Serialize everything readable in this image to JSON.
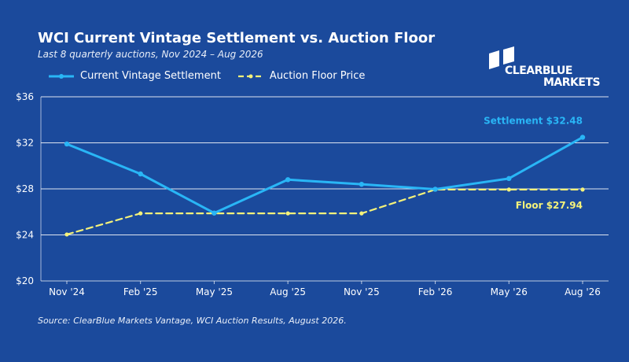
{
  "header": {
    "title": "WCI Current Vintage Settlement vs. Auction Floor",
    "subtitle": "Last 8 quarterly auctions, Nov 2024 – Aug 2026"
  },
  "logo": {
    "line1": "CLEARBLUE",
    "line2": "MARKETS"
  },
  "source": "Source: ClearBlue Markets Vantage, WCI Auction Results, August 2026.",
  "colors": {
    "background": "#1b4a9c",
    "settlement": "#29b6f6",
    "floor": "#f5f27a",
    "grid": "#ffffff"
  },
  "chart_data": {
    "type": "line",
    "categories": [
      "Nov '24",
      "Feb '25",
      "May '25",
      "Aug '25",
      "Nov '25",
      "Feb '26",
      "May '26",
      "Aug '26"
    ],
    "series": [
      {
        "name": "Current Vintage Settlement",
        "values": [
          31.9,
          29.3,
          25.9,
          28.8,
          28.4,
          27.97,
          28.9,
          32.48
        ],
        "style": "solid"
      },
      {
        "name": "Auction Floor Price",
        "values": [
          24.04,
          25.87,
          25.87,
          25.87,
          25.87,
          27.94,
          27.94,
          27.94
        ],
        "style": "dashed"
      }
    ],
    "ylim": [
      20,
      36
    ],
    "yticks": [
      20,
      24,
      28,
      32,
      36
    ],
    "ytick_labels": [
      "$20",
      "$24",
      "$28",
      "$32",
      "$36"
    ],
    "grid": true,
    "legend_position": "top-left",
    "annotations": [
      {
        "series": 0,
        "text": "Settlement  $32.48"
      },
      {
        "series": 1,
        "text": "Floor  $27.94"
      }
    ]
  }
}
